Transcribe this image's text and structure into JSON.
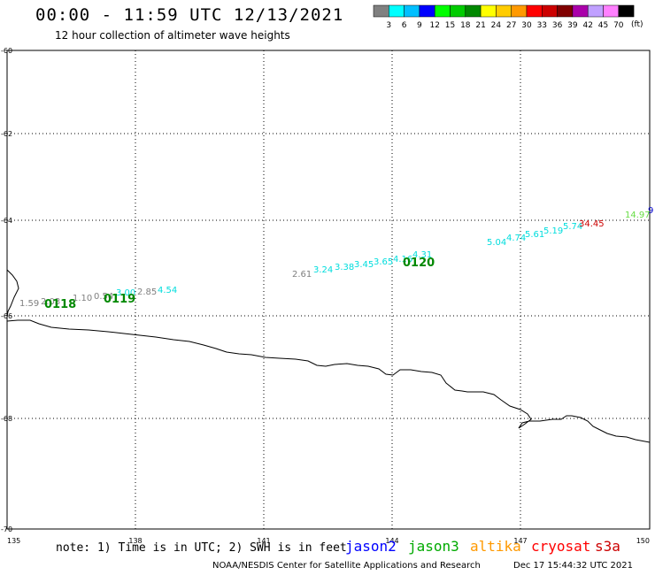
{
  "title": "00:00 - 11:59 UTC 12/13/2021",
  "subtitle": "12 hour collection of altimeter wave heights",
  "legend": {
    "colors": [
      "#808080",
      "#00ffff",
      "#00bfff",
      "#0000ff",
      "#00ff00",
      "#00cc00",
      "#008800",
      "#ffff00",
      "#ffcc00",
      "#ff9900",
      "#ff0000",
      "#cc0000",
      "#800000",
      "#aa00aa",
      "#c0a0ff",
      "#ff80ff",
      "#000000"
    ],
    "labels": [
      "3",
      "6",
      "9",
      "12",
      "15",
      "18",
      "21",
      "24",
      "27",
      "30",
      "33",
      "36",
      "39",
      "42",
      "45",
      "70"
    ],
    "unit": "(ft)"
  },
  "axes": {
    "lon_ticks": [
      "135",
      "138",
      "141",
      "144",
      "147",
      "150"
    ],
    "lat_ticks": [
      "-60",
      "-62",
      "-64",
      "-66",
      "-68",
      "-70"
    ]
  },
  "tracks": [
    {
      "label": "0118",
      "points": [
        {
          "value": "1.59",
          "color": "#808080"
        },
        {
          "value": "2.03",
          "color": "#808080"
        }
      ]
    },
    {
      "label": "0119",
      "points": [
        {
          "value": "1.10",
          "color": "#808080"
        },
        {
          "value": "0.54",
          "color": "#808080"
        },
        {
          "value": "3.00",
          "color": "#00dddd"
        },
        {
          "value": "2.85",
          "color": "#808080"
        },
        {
          "value": "4.54",
          "color": "#00dddd"
        }
      ]
    },
    {
      "label": "0120",
      "points": [
        {
          "value": "2.61",
          "color": "#808080"
        },
        {
          "value": "3.24",
          "color": "#00dddd"
        },
        {
          "value": "3.38",
          "color": "#00dddd"
        },
        {
          "value": "3.45",
          "color": "#00dddd"
        },
        {
          "value": "3.65",
          "color": "#00dddd"
        },
        {
          "value": "4.16",
          "color": "#00dddd"
        },
        {
          "value": "4.31",
          "color": "#00dddd"
        },
        {
          "value": "5.04",
          "color": "#00dddd"
        },
        {
          "value": "4.74",
          "color": "#00dddd"
        },
        {
          "value": "5.61",
          "color": "#00dddd"
        },
        {
          "value": "5.19",
          "color": "#00dddd"
        },
        {
          "value": "5.74",
          "color": "#00dddd"
        },
        {
          "value": "34.45",
          "color": "#cc0000"
        },
        {
          "value": "14.97",
          "color": "#66dd44"
        },
        {
          "value": "9",
          "color": "#0000cc"
        }
      ]
    }
  ],
  "note": "note: 1) Time is in UTC; 2) SWH is in feet",
  "satellites": [
    {
      "name": "jason2",
      "color": "#0000ff"
    },
    {
      "name": "jason3",
      "color": "#00aa00"
    },
    {
      "name": "altika",
      "color": "#ff9900"
    },
    {
      "name": "cryosat",
      "color": "#ff0000"
    },
    {
      "name": "s3a",
      "color": "#cc0000"
    }
  ],
  "footer_left": "NOAA/NESDIS Center for Satellite Applications and Research",
  "footer_right": "Dec 17 15:44:32 UTC 2021"
}
